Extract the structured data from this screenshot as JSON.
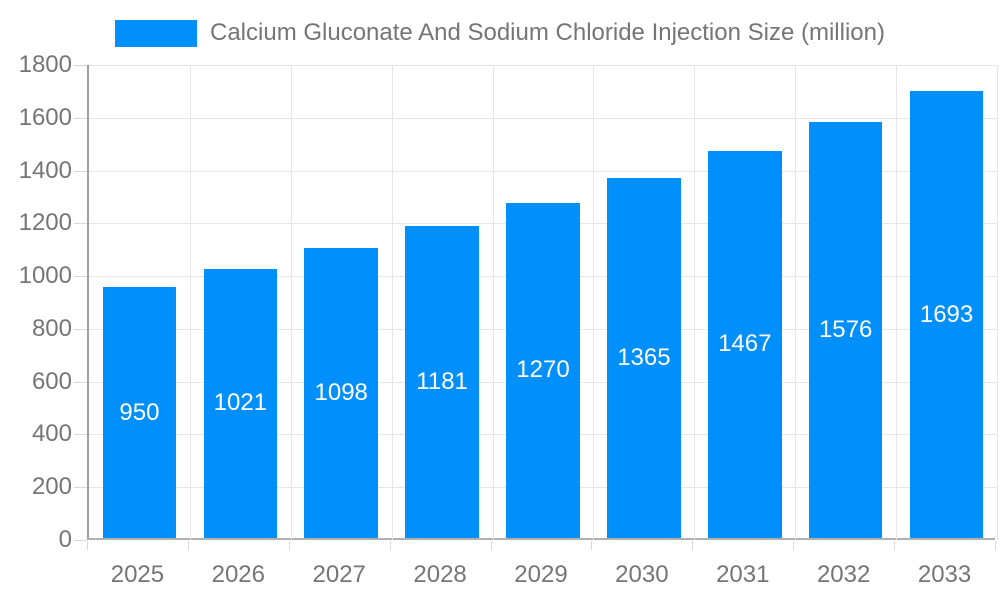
{
  "legend": {
    "label": "Calcium Gluconate And Sodium Chloride Injection Size (million)"
  },
  "chart_data": {
    "type": "bar",
    "title": "Calcium Gluconate And Sodium Chloride Injection Size (million)",
    "categories": [
      "2025",
      "2026",
      "2027",
      "2028",
      "2029",
      "2030",
      "2031",
      "2032",
      "2033"
    ],
    "values": [
      950,
      1021,
      1098,
      1181,
      1270,
      1365,
      1467,
      1576,
      1693
    ],
    "xlabel": "",
    "ylabel": "",
    "ylim": [
      0,
      1800
    ],
    "yticks": [
      0,
      200,
      400,
      600,
      800,
      1000,
      1200,
      1400,
      1600,
      1800
    ],
    "grid": true,
    "legend_position": "top",
    "data_labels": "inside-center",
    "colors": {
      "bar": "#008FFB",
      "data_label": "#FFFFFF",
      "axis_text": "#757575",
      "gridline": "#E6E6E6",
      "tick": "#D9D9D9",
      "y_axis_line": "#9E9E9E",
      "x_axis_line": "#B0B0B0",
      "background": "#FFFFFF"
    }
  }
}
